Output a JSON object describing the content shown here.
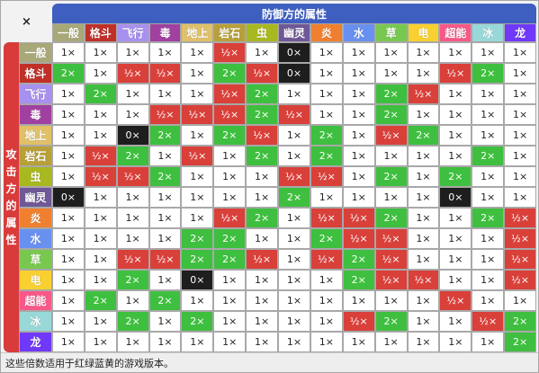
{
  "corner_label": "×",
  "defense_header": "防御方的属性",
  "attack_header": "攻击方的属性",
  "footer": "这些倍数适用于红绿蓝黄的游戏版本。",
  "types": [
    "一般",
    "格斗",
    "飞行",
    "毒",
    "地上",
    "岩石",
    "虫",
    "幽灵",
    "炎",
    "水",
    "草",
    "电",
    "超能",
    "冰",
    "龙"
  ],
  "type_colors": [
    "#a8a878",
    "#c03028",
    "#a890f0",
    "#a040a0",
    "#e0c068",
    "#b8a038",
    "#a8b820",
    "#705898",
    "#f08030",
    "#6890f0",
    "#78c850",
    "#f8d030",
    "#f85888",
    "#98d8d8",
    "#7038f8"
  ],
  "rows": [
    [
      "1×",
      "1×",
      "1×",
      "1×",
      "1×",
      "½×",
      "1×",
      "0×",
      "1×",
      "1×",
      "1×",
      "1×",
      "1×",
      "1×",
      "1×"
    ],
    [
      "2×",
      "1×",
      "½×",
      "½×",
      "1×",
      "2×",
      "½×",
      "0×",
      "1×",
      "1×",
      "1×",
      "1×",
      "½×",
      "2×",
      "1×"
    ],
    [
      "1×",
      "2×",
      "1×",
      "1×",
      "1×",
      "½×",
      "2×",
      "1×",
      "1×",
      "1×",
      "2×",
      "½×",
      "1×",
      "1×",
      "1×"
    ],
    [
      "1×",
      "1×",
      "1×",
      "½×",
      "½×",
      "½×",
      "2×",
      "½×",
      "1×",
      "1×",
      "2×",
      "1×",
      "1×",
      "1×",
      "1×"
    ],
    [
      "1×",
      "1×",
      "0×",
      "2×",
      "1×",
      "2×",
      "½×",
      "1×",
      "2×",
      "1×",
      "½×",
      "2×",
      "1×",
      "1×",
      "1×"
    ],
    [
      "1×",
      "½×",
      "2×",
      "1×",
      "½×",
      "1×",
      "2×",
      "1×",
      "2×",
      "1×",
      "1×",
      "1×",
      "1×",
      "2×",
      "1×"
    ],
    [
      "1×",
      "½×",
      "½×",
      "2×",
      "1×",
      "1×",
      "1×",
      "½×",
      "½×",
      "1×",
      "2×",
      "1×",
      "2×",
      "1×",
      "1×"
    ],
    [
      "0×",
      "1×",
      "1×",
      "1×",
      "1×",
      "1×",
      "1×",
      "2×",
      "1×",
      "1×",
      "1×",
      "1×",
      "0×",
      "1×",
      "1×"
    ],
    [
      "1×",
      "1×",
      "1×",
      "1×",
      "1×",
      "½×",
      "2×",
      "1×",
      "½×",
      "½×",
      "2×",
      "1×",
      "1×",
      "2×",
      "½×"
    ],
    [
      "1×",
      "1×",
      "1×",
      "1×",
      "2×",
      "2×",
      "1×",
      "1×",
      "2×",
      "½×",
      "½×",
      "1×",
      "1×",
      "1×",
      "½×"
    ],
    [
      "1×",
      "1×",
      "½×",
      "½×",
      "2×",
      "2×",
      "½×",
      "1×",
      "½×",
      "2×",
      "½×",
      "1×",
      "1×",
      "1×",
      "½×"
    ],
    [
      "1×",
      "1×",
      "2×",
      "1×",
      "0×",
      "1×",
      "1×",
      "1×",
      "1×",
      "2×",
      "½×",
      "½×",
      "1×",
      "1×",
      "½×"
    ],
    [
      "1×",
      "2×",
      "1×",
      "2×",
      "1×",
      "1×",
      "1×",
      "1×",
      "1×",
      "1×",
      "1×",
      "1×",
      "½×",
      "1×",
      "1×"
    ],
    [
      "1×",
      "1×",
      "2×",
      "1×",
      "2×",
      "1×",
      "1×",
      "1×",
      "1×",
      "½×",
      "2×",
      "1×",
      "1×",
      "½×",
      "2×"
    ],
    [
      "1×",
      "1×",
      "1×",
      "1×",
      "1×",
      "1×",
      "1×",
      "1×",
      "1×",
      "1×",
      "1×",
      "1×",
      "1×",
      "1×",
      "2×"
    ]
  ]
}
